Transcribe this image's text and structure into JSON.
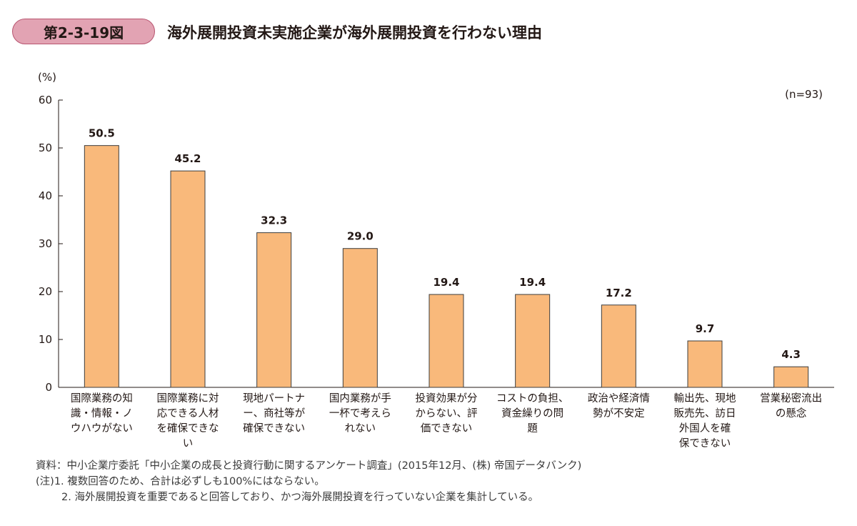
{
  "figure": {
    "number": "第2-3-19図",
    "title": "海外展開投資未実施企業が海外展開投資を行わない理由"
  },
  "colors": {
    "bar": "#f9b97b",
    "bar_border": "#3d3d3d",
    "badge_fill": "#e2a3b3",
    "badge_border": "#b85570"
  },
  "chart_data": {
    "type": "bar",
    "unit_label": "(%)",
    "sample_size_label": "(n=93)",
    "ylim": [
      0,
      60
    ],
    "yticks": [
      0,
      10,
      20,
      30,
      40,
      50,
      60
    ],
    "grid": false,
    "categories": [
      [
        "国際業務の知",
        "識・情報・ノ",
        "ウハウがない"
      ],
      [
        "国際業務に対",
        "応できる人材",
        "を確保できな",
        "い"
      ],
      [
        "現地パートナ",
        "ー、商社等が",
        "確保できない"
      ],
      [
        "国内業務が手",
        "一杯で考えら",
        "れない"
      ],
      [
        "投資効果が分",
        "からない、評",
        "価できない"
      ],
      [
        "コストの負担、",
        "資金繰りの問",
        "題"
      ],
      [
        "政治や経済情",
        "勢が不安定"
      ],
      [
        "輸出先、現地",
        "販売先、訪日",
        "外国人を確",
        "保できない"
      ],
      [
        "営業秘密流出",
        "の懸念"
      ]
    ],
    "values": [
      50.5,
      45.2,
      32.3,
      29.0,
      19.4,
      19.4,
      17.2,
      9.7,
      4.3
    ],
    "value_labels": [
      "50.5",
      "45.2",
      "32.3",
      "29.0",
      "19.4",
      "19.4",
      "17.2",
      "9.7",
      "4.3"
    ]
  },
  "notes": {
    "source": "資料：中小企業庁委託「中小企業の成長と投資行動に関するアンケート調査」(2015年12月、(株) 帝国データバンク)",
    "note1": "(注)1. 複数回答のため、合計は必ずしも100%にはならない。",
    "note2": "2. 海外展開投資を重要であると回答しており、かつ海外展開投資を行っていない企業を集計している。"
  }
}
